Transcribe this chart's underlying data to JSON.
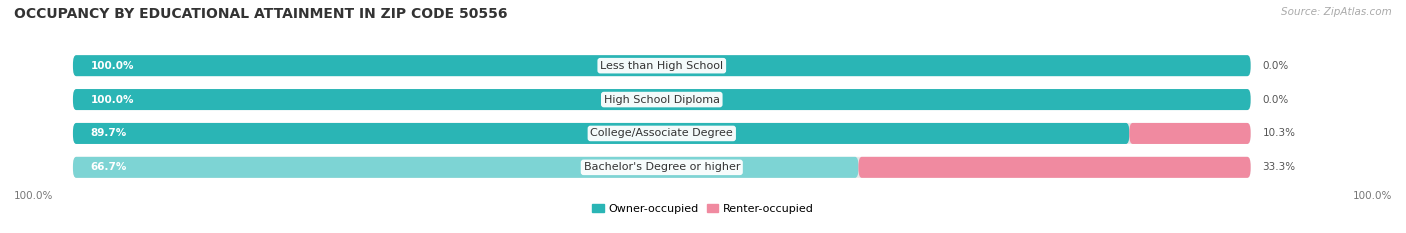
{
  "title": "OCCUPANCY BY EDUCATIONAL ATTAINMENT IN ZIP CODE 50556",
  "source": "Source: ZipAtlas.com",
  "categories": [
    "Less than High School",
    "High School Diploma",
    "College/Associate Degree",
    "Bachelor's Degree or higher"
  ],
  "owner_values": [
    100.0,
    100.0,
    89.7,
    66.7
  ],
  "renter_values": [
    0.0,
    0.0,
    10.3,
    33.3
  ],
  "owner_colors": [
    "#2ab5b5",
    "#2ab5b5",
    "#2ab5b5",
    "#7dd4d4"
  ],
  "renter_color": "#f08aa0",
  "bar_bg_color": "#e8e8e8",
  "background_color": "#ffffff",
  "title_fontsize": 10,
  "source_fontsize": 7.5,
  "cat_label_fontsize": 8,
  "bar_label_fontsize": 7.5,
  "legend_fontsize": 8,
  "bar_height": 0.62,
  "bottom_labels": [
    "100.0%",
    "100.0%"
  ]
}
